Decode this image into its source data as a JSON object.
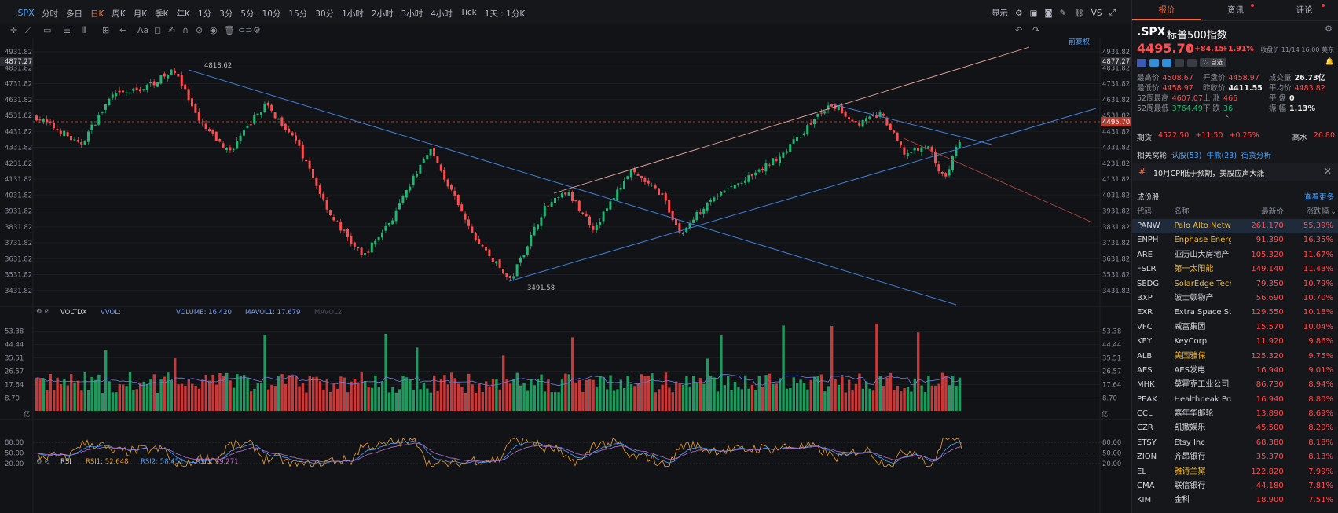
{
  "toolbar": {
    "symbol": ".SPX",
    "periods": [
      "分时",
      "多日",
      "日K",
      "周K",
      "月K",
      "季K",
      "年K",
      "1分",
      "3分",
      "5分",
      "10分",
      "15分",
      "30分",
      "1小时",
      "2小时",
      "3小时",
      "4小时",
      "Tick",
      "1天 : 1分K"
    ],
    "active_period": "日K",
    "display_label": "显示",
    "vs_label": "VS"
  },
  "drawtools": {
    "restore_label": "前复权"
  },
  "chart": {
    "y_labels": [
      "4931.82",
      "4877.27",
      "4831.82",
      "4731.82",
      "4631.82",
      "4531.82",
      "4495.70",
      "4431.82",
      "4331.82",
      "4231.82",
      "4131.82",
      "4031.82",
      "3931.82",
      "3831.82",
      "3731.82",
      "3631.82",
      "3531.82",
      "3431.82"
    ],
    "current_price_tag": "4495.70",
    "crosshair_tag": "4877.27",
    "high_label": "4818.62",
    "low_label": "3491.58"
  },
  "volume": {
    "indicator": "VOLTDX",
    "vvol": "VVOL:",
    "volume_text": "VOLUME: 16.420",
    "mavol1_text": "MAVOL1: 17.679",
    "mavol2_text": "MAVOL2:",
    "y_labels": [
      "53.38",
      "44.44",
      "35.51",
      "26.57",
      "17.64",
      "8.70"
    ],
    "unit": "亿"
  },
  "rsi": {
    "indicator": "RSI",
    "rsi1_text": "RSI1: 52.648",
    "rsi2_text": "RSI2: 58.452",
    "rsi3_text": "RSI3: 59.271",
    "y_labels": [
      "80.00",
      "50.00",
      "20.00"
    ]
  },
  "panel": {
    "tabs": [
      "报价",
      "资讯",
      "评论"
    ],
    "symbol": ".SPX",
    "name": "标普500指数",
    "price": "4495.70",
    "arrow": "↑",
    "change": "+84.15",
    "change_pct": "+1.91%",
    "close_time": "收盘价 11/14 16:00 美东",
    "watch_label": "自选",
    "stats": [
      [
        {
          "k": "最高价",
          "v": "4508.67",
          "c": "up"
        },
        {
          "k": "开盘价",
          "v": "4458.97",
          "c": "up"
        },
        {
          "k": "成交量",
          "v": "26.73亿",
          "c": "w"
        }
      ],
      [
        {
          "k": "最低价",
          "v": "4458.97",
          "c": "up"
        },
        {
          "k": "昨收价",
          "v": "4411.55",
          "c": "w"
        },
        {
          "k": "平均价",
          "v": "4483.82",
          "c": "up"
        }
      ],
      [
        {
          "k": "52周最高",
          "v": "4607.07",
          "c": "up"
        },
        {
          "k": "上 涨",
          "v": "466",
          "c": "up"
        },
        {
          "k": "平 盘",
          "v": "0",
          "c": "w"
        }
      ],
      [
        {
          "k": "52周最低",
          "v": "3764.49",
          "c": "dn"
        },
        {
          "k": "下 跌",
          "v": "36",
          "c": "dn"
        },
        {
          "k": "振 幅",
          "v": "1.13%",
          "c": "w"
        }
      ]
    ],
    "futures": {
      "label": "期货",
      "price": "4522.50",
      "change": "+11.50",
      "pct": "+0.25%",
      "right_label": "高水",
      "right_value": "26.80"
    },
    "related": {
      "label": "相关窝轮",
      "warrants": "认股(53)",
      "bull": "牛熊(23)",
      "options": "街货分析"
    },
    "news": "10月CPI低于预期，美股应声大涨",
    "constituents_title": "成份股",
    "see_more": "查看更多",
    "table_headers": [
      "代码",
      "名称",
      "最新价",
      "涨跌幅"
    ],
    "stocks": [
      {
        "code": "PANW",
        "name": "Palo Alto Netw",
        "price": "261.170",
        "pct": "55.39%",
        "hl": true
      },
      {
        "code": "ENPH",
        "name": "Enphase Energ",
        "price": "91.390",
        "pct": "16.35%",
        "hl": true
      },
      {
        "code": "ARE",
        "name": "亚历山大房地产",
        "price": "105.320",
        "pct": "11.67%",
        "hl": false
      },
      {
        "code": "FSLR",
        "name": "第一太阳能",
        "price": "149.140",
        "pct": "11.43%",
        "hl": true
      },
      {
        "code": "SEDG",
        "name": "SolarEdge Tech",
        "price": "79.350",
        "pct": "10.79%",
        "hl": true
      },
      {
        "code": "BXP",
        "name": "波士顿物产",
        "price": "56.690",
        "pct": "10.70%",
        "hl": false
      },
      {
        "code": "EXR",
        "name": "Extra Space Sto",
        "price": "129.550",
        "pct": "10.18%",
        "hl": false
      },
      {
        "code": "VFC",
        "name": "威富集团",
        "price": "15.570",
        "pct": "10.04%",
        "hl": false
      },
      {
        "code": "KEY",
        "name": "KeyCorp",
        "price": "11.920",
        "pct": "9.86%",
        "hl": false
      },
      {
        "code": "ALB",
        "name": "美国雅保",
        "price": "125.320",
        "pct": "9.75%",
        "hl": true
      },
      {
        "code": "AES",
        "name": "AES发电",
        "price": "16.940",
        "pct": "9.01%",
        "hl": false
      },
      {
        "code": "MHK",
        "name": "莫霍克工业公司",
        "price": "86.730",
        "pct": "8.94%",
        "hl": false
      },
      {
        "code": "PEAK",
        "name": "Healthpeak Pro",
        "price": "16.940",
        "pct": "8.80%",
        "hl": false
      },
      {
        "code": "CCL",
        "name": "嘉年华邮轮",
        "price": "13.890",
        "pct": "8.69%",
        "hl": false
      },
      {
        "code": "CZR",
        "name": "凯撒娱乐",
        "price": "45.500",
        "pct": "8.20%",
        "hl": false
      },
      {
        "code": "ETSY",
        "name": "Etsy Inc",
        "price": "68.380",
        "pct": "8.18%",
        "hl": false
      },
      {
        "code": "ZION",
        "name": "齐昂银行",
        "price": "35.370",
        "pct": "8.13%",
        "hl": false
      },
      {
        "code": "EL",
        "name": "雅诗兰黛",
        "price": "122.820",
        "pct": "7.99%",
        "hl": true
      },
      {
        "code": "CMA",
        "name": "联信银行",
        "price": "44.180",
        "pct": "7.81%",
        "hl": false
      },
      {
        "code": "KIM",
        "name": "金科",
        "price": "18.900",
        "pct": "7.51%",
        "hl": false
      }
    ]
  },
  "colors": {
    "up": "#ff4d4f",
    "down": "#22b573",
    "accent": "#ff6a3d",
    "trend": "#3f7fd9",
    "channel": "#e8a6a0"
  }
}
